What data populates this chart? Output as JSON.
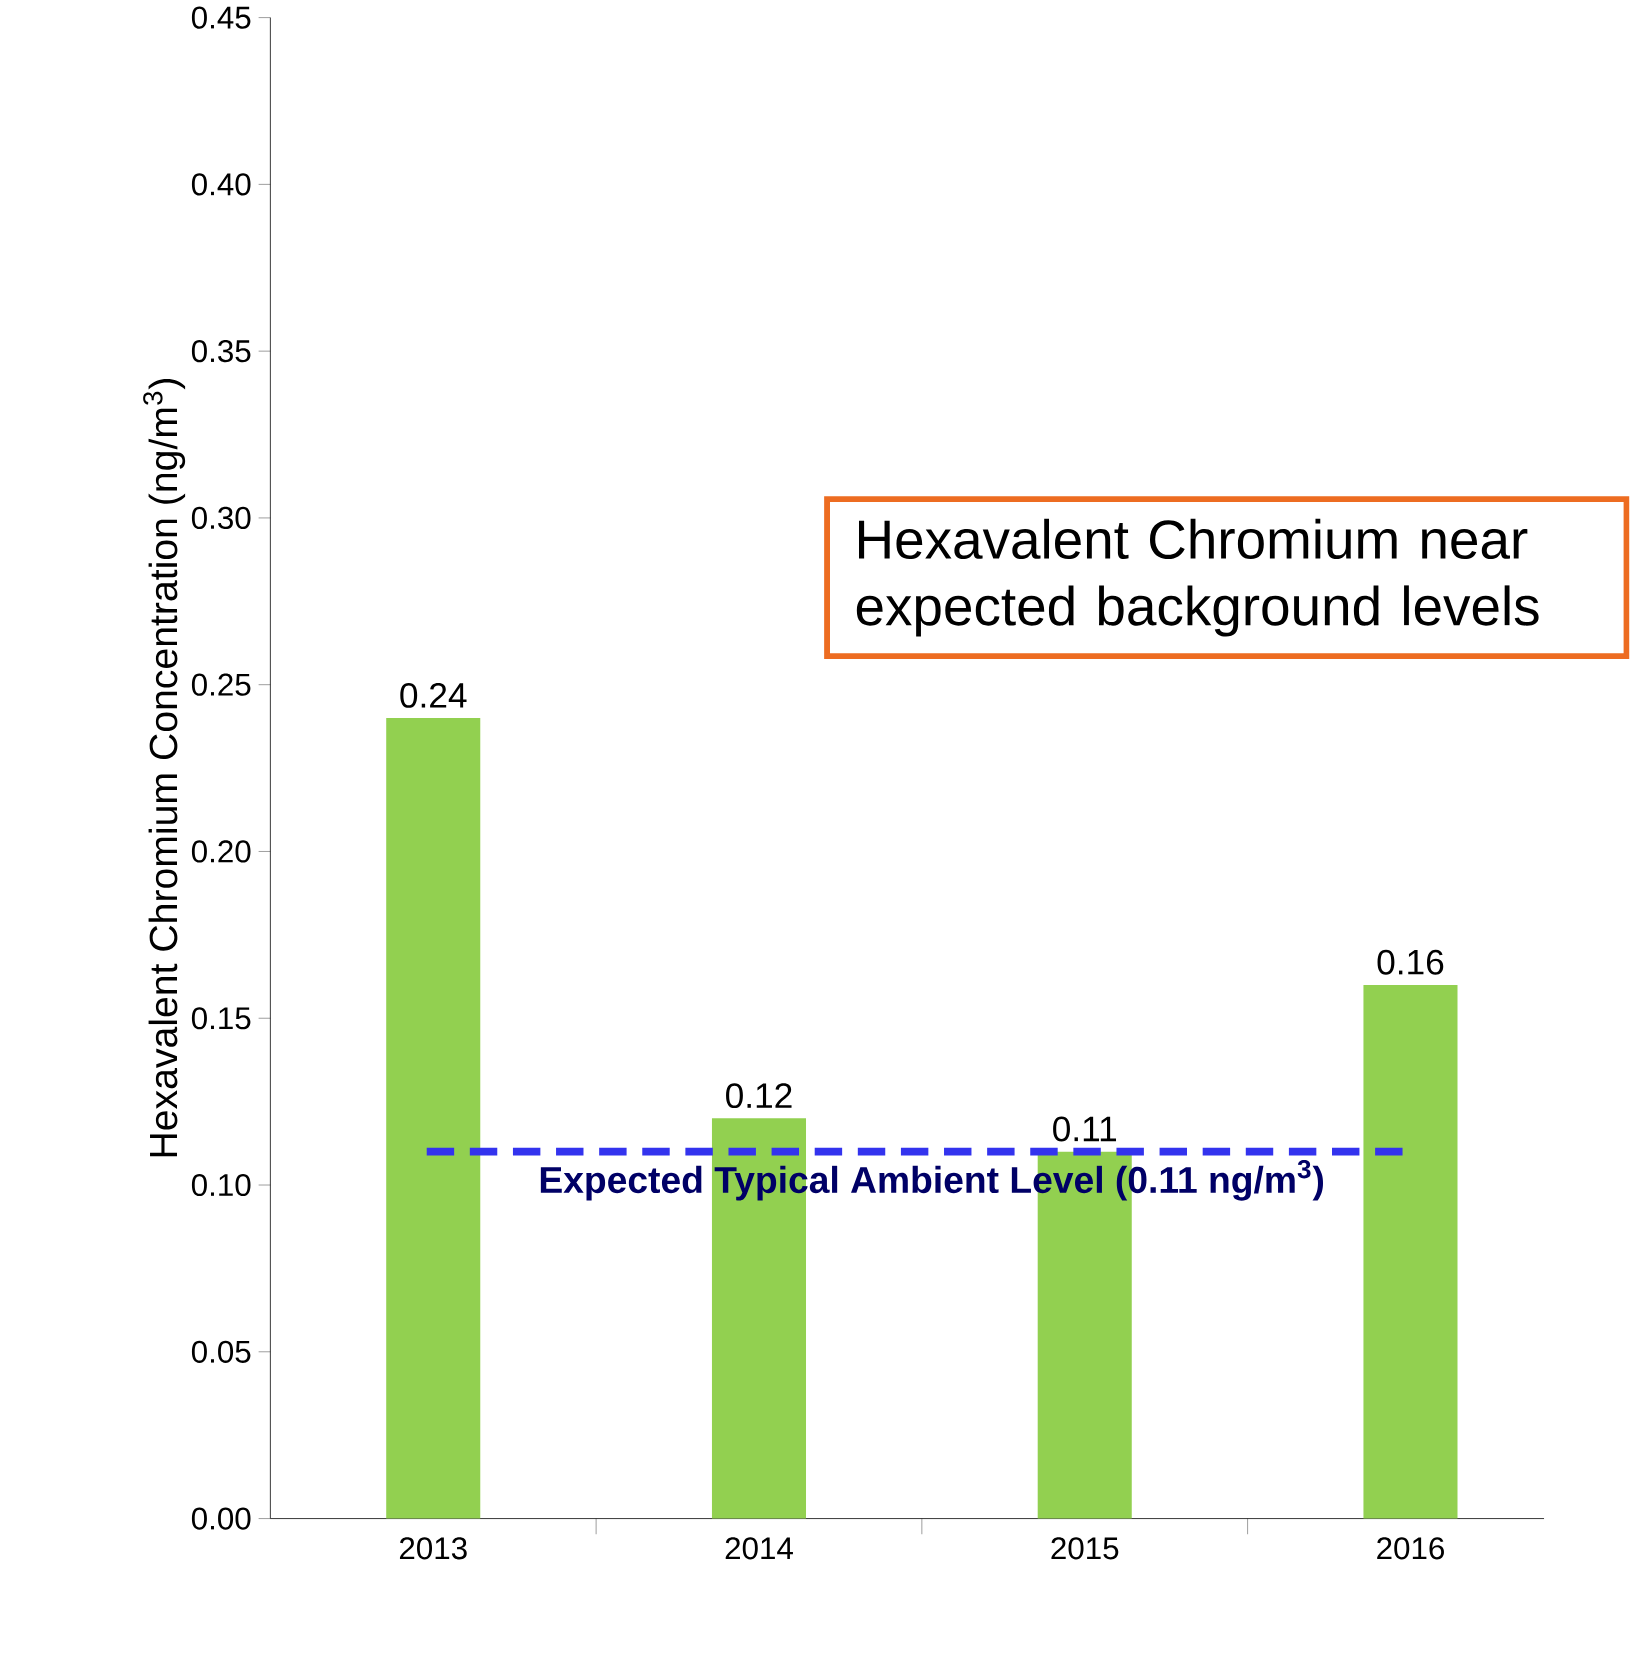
{
  "chart_data": {
    "type": "bar",
    "ylabel": "Hexavalent Chromium Concentration (ng/m$^{3}$)",
    "categories": [
      "2013",
      "2014",
      "2015",
      "2016"
    ],
    "values": [
      0.24,
      0.12,
      0.11,
      0.16
    ],
    "color": "#92d050",
    "data_labels": true,
    "ylim": [
      0,
      0.45
    ],
    "yticks": [
      {
        "value": 0,
        "label": "0.00"
      },
      {
        "value": 0.05,
        "label": "0.05"
      },
      {
        "value": 0.1,
        "label": "0.10"
      },
      {
        "value": 0.15,
        "label": "0.15"
      },
      {
        "value": 0.2,
        "label": "0.20"
      },
      {
        "value": 0.25,
        "label": "0.25"
      },
      {
        "value": 0.3,
        "label": "0.30"
      },
      {
        "value": 0.35,
        "label": "0.35"
      },
      {
        "value": 0.4,
        "label": "0.40"
      },
      {
        "value": 0.45,
        "label": "0.45"
      }
    ],
    "ref_lines": [
      {
        "axis": "y",
        "value": 0.11,
        "label": "Expected Typical Ambient Level (0.11 ng/m$^{3}$)",
        "color": "#3333ee",
        "line_style": "dashed"
      }
    ],
    "annotations": [
      "Hexavalent Chromium near expected background levels"
    ],
    "grid": false
  }
}
